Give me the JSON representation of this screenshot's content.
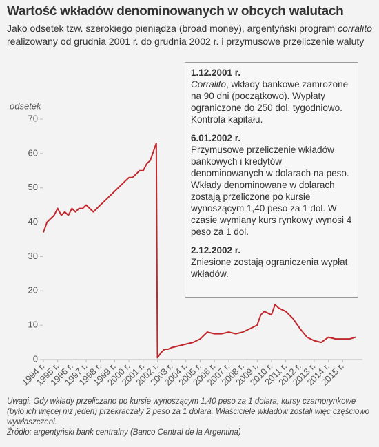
{
  "chart_data": {
    "type": "line",
    "title": "Wartość wkładów denominowanych w obcych walutach",
    "subtitle_parts": [
      "Jako odsetek tzw. szerokiego pieniądza (broad money), argentyński program ",
      "corralito",
      " realizowany od grudnia 2001 r. do grudnia 2002 r. i przymusowe przeliczenie waluty"
    ],
    "y_label": "odsetek",
    "x": [
      1994.0,
      1994.25,
      1994.5,
      1994.75,
      1995.0,
      1995.25,
      1995.5,
      1995.75,
      1996.0,
      1996.25,
      1996.5,
      1996.75,
      1997.0,
      1997.25,
      1997.5,
      1997.75,
      1998.0,
      1998.25,
      1998.5,
      1998.75,
      1999.0,
      1999.25,
      1999.5,
      1999.75,
      2000.0,
      2000.25,
      2000.5,
      2000.75,
      2001.0,
      2001.25,
      2001.5,
      2001.75,
      2001.92,
      2002.0,
      2002.25,
      2002.5,
      2002.75,
      2003.0,
      2003.5,
      2004.0,
      2004.5,
      2005.0,
      2005.5,
      2006.0,
      2006.5,
      2007.0,
      2007.5,
      2008.0,
      2008.5,
      2009.0,
      2009.25,
      2009.5,
      2010.0,
      2010.25,
      2010.5,
      2011.0,
      2011.5,
      2012.0,
      2012.5,
      2013.0,
      2013.5,
      2014.0,
      2014.5,
      2015.0,
      2015.5,
      2015.9
    ],
    "series": [
      {
        "color": "#c0282d",
        "values": [
          37,
          40,
          41,
          42,
          44,
          42,
          43,
          42,
          44,
          43,
          44,
          44,
          45,
          44,
          43,
          44,
          45,
          46,
          47,
          48,
          49,
          50,
          51,
          52,
          53,
          53,
          54,
          55,
          55,
          57,
          58,
          61,
          63,
          0.5,
          2,
          3,
          3,
          3.5,
          4,
          4.5,
          5,
          6,
          8,
          7.5,
          7.5,
          8,
          7.5,
          8,
          9,
          10,
          13,
          14,
          13,
          16,
          15,
          14,
          12,
          9,
          6.5,
          5.5,
          5,
          6.5,
          6,
          6,
          6,
          6.5
        ]
      }
    ],
    "xlim": [
      1994,
      2016
    ],
    "xticks": [
      {
        "value": 1994,
        "label": "1994 r."
      },
      {
        "value": 1995,
        "label": "1995 r."
      },
      {
        "value": 1996,
        "label": "1996 r."
      },
      {
        "value": 1997,
        "label": "1997 r."
      },
      {
        "value": 1998,
        "label": "1998 r."
      },
      {
        "value": 1999,
        "label": "1999 r."
      },
      {
        "value": 2000,
        "label": "2000 r."
      },
      {
        "value": 2001,
        "label": "2001 r."
      },
      {
        "value": 2002,
        "label": "2002 r."
      },
      {
        "value": 2003,
        "label": "2003 r."
      },
      {
        "value": 2004,
        "label": "2004 r."
      },
      {
        "value": 2005,
        "label": "2005 r."
      },
      {
        "value": 2006,
        "label": "2006 r."
      },
      {
        "value": 2007,
        "label": "2007 r."
      },
      {
        "value": 2008,
        "label": "2008 r."
      },
      {
        "value": 2009,
        "label": "2009 r."
      },
      {
        "value": 2010,
        "label": "2010 r."
      },
      {
        "value": 2011,
        "label": "2011 r."
      },
      {
        "value": 2012,
        "label": "2012 r."
      },
      {
        "value": 2013,
        "label": "2013 r."
      },
      {
        "value": 2014,
        "label": "2014 r."
      },
      {
        "value": 2015,
        "label": "2015 r."
      }
    ],
    "ylim": [
      0,
      70
    ],
    "yticks": [
      0,
      10,
      20,
      30,
      40,
      50,
      60,
      70
    ],
    "grid": false,
    "annotations": [
      {
        "date": "1.12.2001 r.",
        "italic_lead": "Corralito",
        "text": ", wkłady bankowe zamrożone na 90 dni (początkowo). Wypłaty ograniczone do 250 dol. tygodniowo. Kontrola kapitału."
      },
      {
        "date": "6.01.2002 r.",
        "text": "Przymusowe przeliczenie wkładów bankowych i kredytów denominowanych w dolarach na peso. Wkłady denominowane w dolarach zostają przeliczone po kursie wynoszącym 1,40 peso za 1 dol. W czasie wymiany kurs rynkowy wynosi 4 peso za 1 dol."
      },
      {
        "date": "2.12.2002 r.",
        "text": "Zniesione zostają ograniczenia wypłat wkładów."
      }
    ],
    "note": "Uwagi. Gdy wkłady przeliczano po kursie wynoszącym 1,40 peso za 1 dolara, kursy czarnorynkowe (było ich więcej niż jeden) przekraczały 2 peso za 1 dolara. Właściciele wkładów zostali więc częściowo wywłaszczeni.",
    "source": "Źródło: argentyński bank centralny (Banco Central de la Argentina)"
  }
}
